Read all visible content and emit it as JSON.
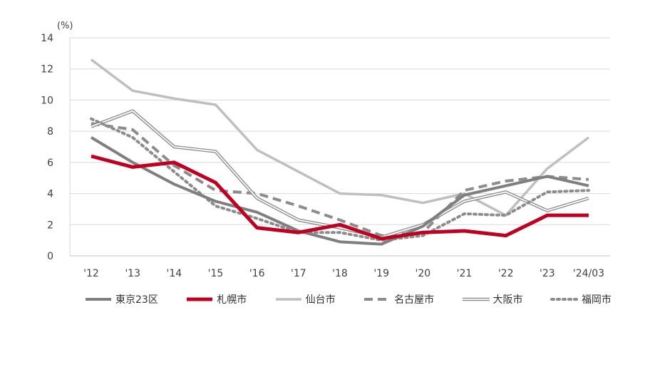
{
  "chart_data": {
    "type": "line",
    "unit_label": "(%)",
    "categories": [
      "'12",
      "'13",
      "'14",
      "'15",
      "'16",
      "'17",
      "'18",
      "'19",
      "'20",
      "'21",
      "'22",
      "'23",
      "'24/03"
    ],
    "ylim": [
      0,
      14
    ],
    "yticks": [
      "0",
      "2",
      "4",
      "6",
      "8",
      "10",
      "12",
      "14"
    ],
    "grid": true,
    "legend_position": "bottom",
    "series": [
      {
        "name": "東京23区",
        "color": "#7f7f7f",
        "style": "solid-thick",
        "values": [
          7.6,
          6.0,
          4.6,
          3.5,
          2.8,
          1.6,
          0.9,
          0.75,
          1.9,
          3.9,
          4.5,
          5.1,
          4.5
        ]
      },
      {
        "name": "札幌市",
        "color": "#c00020",
        "style": "solid-bold",
        "values": [
          6.4,
          5.7,
          6.0,
          4.7,
          1.8,
          1.5,
          2.0,
          1.1,
          1.5,
          1.6,
          1.3,
          2.6,
          2.6
        ]
      },
      {
        "name": "仙台市",
        "color": "#bfbfbf",
        "style": "solid-light",
        "values": [
          12.6,
          10.6,
          10.1,
          9.7,
          6.8,
          5.4,
          4.0,
          3.9,
          3.4,
          4.0,
          2.6,
          5.6,
          7.6
        ]
      },
      {
        "name": "名古屋市",
        "color": "#8c8c8c",
        "style": "dashed",
        "values": [
          8.5,
          8.1,
          5.8,
          4.2,
          4.0,
          3.2,
          2.3,
          1.3,
          1.5,
          4.2,
          4.8,
          5.1,
          4.9
        ]
      },
      {
        "name": "大阪市",
        "color": "#8c8c8c",
        "style": "double",
        "values": [
          8.3,
          9.3,
          7.0,
          6.7,
          3.7,
          2.3,
          1.8,
          1.2,
          2.0,
          3.5,
          4.1,
          2.9,
          3.7
        ]
      },
      {
        "name": "福岡市",
        "color": "#8c8c8c",
        "style": "dotted",
        "values": [
          8.8,
          7.6,
          5.4,
          3.2,
          2.4,
          1.5,
          1.5,
          1.0,
          1.3,
          2.7,
          2.6,
          4.1,
          4.2
        ]
      }
    ]
  }
}
